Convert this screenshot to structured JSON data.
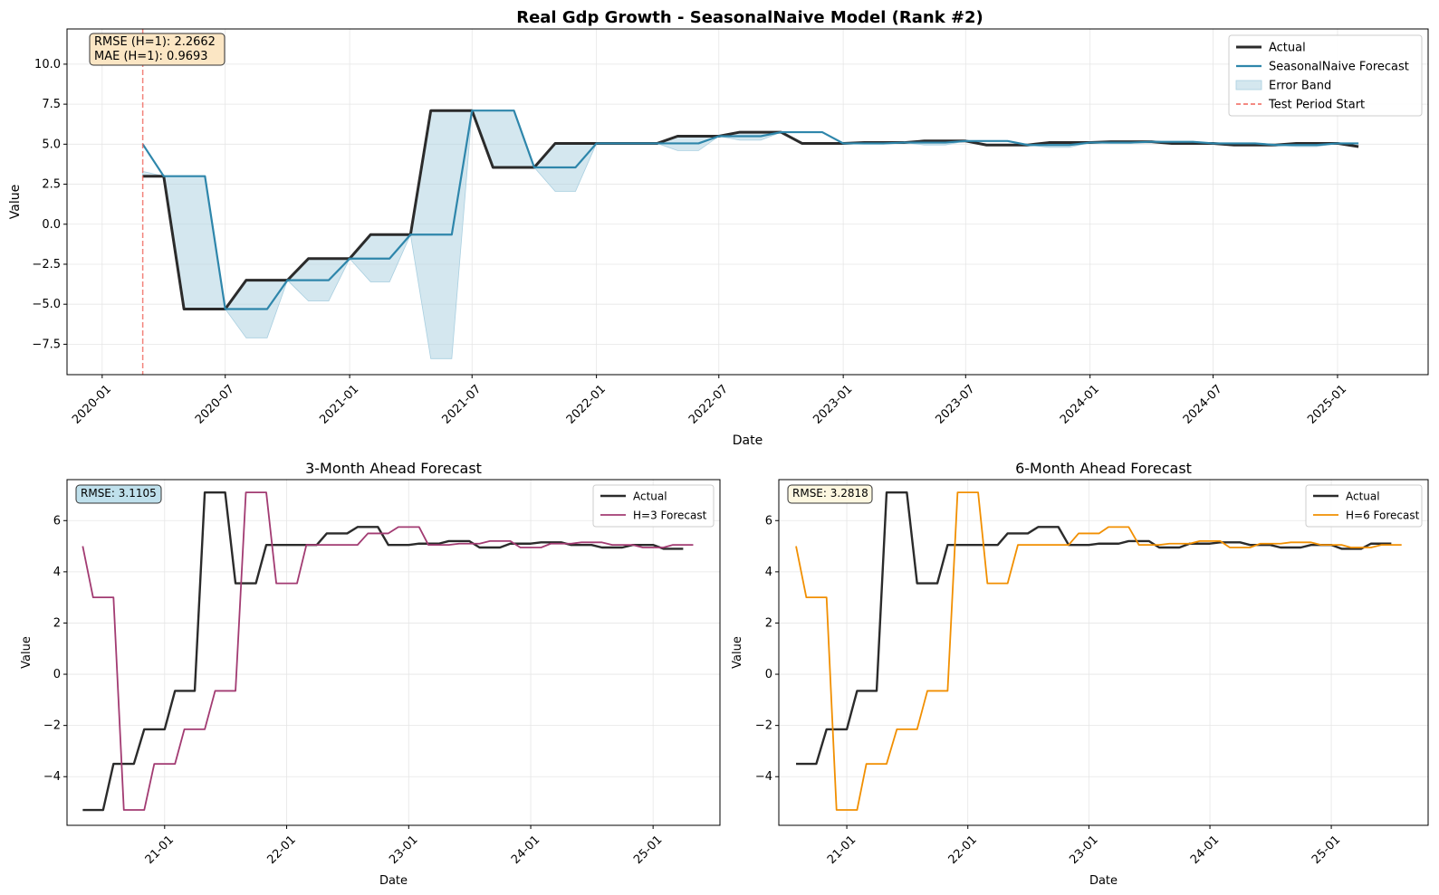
{
  "figure": {
    "title": "Real Gdp Growth - SeasonalNaive Model (Rank #2)"
  },
  "colors": {
    "actual": "#2b2b2b",
    "forecast": "#2e86ab",
    "band": "#a9cfe0",
    "test_start": "#f0645a",
    "h3": "#a23b72",
    "h6": "#f18f01",
    "metrics_box": "#fbe6c4",
    "h3_box": "#bfe0ec",
    "h6_box": "#fdf7e0"
  },
  "chart_data": [
    {
      "id": "main",
      "type": "line",
      "title": "Real Gdp Growth - SeasonalNaive Model (Rank #2)",
      "xlabel": "Date",
      "ylabel": "Value",
      "xlim": [
        "2019-11-10",
        "2025-05-15"
      ],
      "ylim": [
        -9.4,
        12.2
      ],
      "xticks": [
        "2020-01",
        "2020-07",
        "2021-01",
        "2021-07",
        "2022-01",
        "2022-07",
        "2023-01",
        "2023-07",
        "2024-01",
        "2024-07",
        "2025-01"
      ],
      "yticks": [
        -7.5,
        -5.0,
        -2.5,
        0.0,
        2.5,
        5.0,
        7.5,
        10.0
      ],
      "ytick_labels": [
        "−7.5",
        "−5.0",
        "−2.5",
        "0.0",
        "2.5",
        "5.0",
        "7.5",
        "10.0"
      ],
      "grid": true,
      "legend_position": "top-right",
      "annotation": {
        "line1": "RMSE (H=1): 2.2662",
        "line2": "MAE (H=1): 0.9693"
      },
      "test_period_start": "2020-03",
      "x": [
        "2020-03",
        "2020-04",
        "2020-05",
        "2020-06",
        "2020-07",
        "2020-08",
        "2020-09",
        "2020-10",
        "2020-11",
        "2020-12",
        "2021-01",
        "2021-02",
        "2021-03",
        "2021-04",
        "2021-05",
        "2021-06",
        "2021-07",
        "2021-08",
        "2021-09",
        "2021-10",
        "2021-11",
        "2021-12",
        "2022-01",
        "2022-02",
        "2022-03",
        "2022-04",
        "2022-05",
        "2022-06",
        "2022-07",
        "2022-08",
        "2022-09",
        "2022-10",
        "2022-11",
        "2022-12",
        "2023-01",
        "2023-02",
        "2023-03",
        "2023-04",
        "2023-05",
        "2023-06",
        "2023-07",
        "2023-08",
        "2023-09",
        "2023-10",
        "2023-11",
        "2023-12",
        "2024-01",
        "2024-02",
        "2024-03",
        "2024-04",
        "2024-05",
        "2024-06",
        "2024-07",
        "2024-08",
        "2024-09",
        "2024-10",
        "2024-11",
        "2024-12",
        "2025-01",
        "2025-02"
      ],
      "series": [
        {
          "name": "Actual",
          "values": [
            3.0,
            3.0,
            -5.3,
            -5.3,
            -5.3,
            -3.5,
            -3.5,
            -3.5,
            -2.15,
            -2.15,
            -2.15,
            -0.65,
            -0.65,
            -0.65,
            7.1,
            7.1,
            7.1,
            3.55,
            3.55,
            3.55,
            5.05,
            5.05,
            5.05,
            5.05,
            5.05,
            5.05,
            5.5,
            5.5,
            5.5,
            5.75,
            5.75,
            5.75,
            5.05,
            5.05,
            5.05,
            5.1,
            5.1,
            5.1,
            5.2,
            5.2,
            5.2,
            4.95,
            4.95,
            4.95,
            5.1,
            5.1,
            5.1,
            5.15,
            5.15,
            5.15,
            5.05,
            5.05,
            5.05,
            4.95,
            4.95,
            4.95,
            5.05,
            5.05,
            5.05,
            4.85
          ]
        },
        {
          "name": "SeasonalNaive Forecast",
          "values": [
            5.0,
            3.0,
            3.0,
            3.0,
            -5.3,
            -5.3,
            -5.3,
            -3.5,
            -3.5,
            -3.5,
            -2.15,
            -2.15,
            -2.15,
            -0.65,
            -0.65,
            -0.65,
            7.1,
            7.1,
            7.1,
            3.55,
            3.55,
            3.55,
            5.05,
            5.05,
            5.05,
            5.05,
            5.05,
            5.05,
            5.5,
            5.5,
            5.5,
            5.75,
            5.75,
            5.75,
            5.05,
            5.05,
            5.05,
            5.1,
            5.1,
            5.1,
            5.2,
            5.2,
            5.2,
            4.95,
            4.95,
            4.95,
            5.1,
            5.1,
            5.1,
            5.15,
            5.15,
            5.15,
            5.05,
            5.05,
            5.05,
            4.95,
            4.95,
            4.95,
            5.05,
            5.05
          ]
        },
        {
          "name": "Error Band",
          "type": "area",
          "lower": [
            3.3,
            3.0,
            3.0,
            3.0,
            -5.3,
            -7.1,
            -7.1,
            -3.5,
            -4.8,
            -4.8,
            -2.15,
            -3.6,
            -3.6,
            -0.65,
            -8.4,
            -8.4,
            7.1,
            7.1,
            7.1,
            3.55,
            2.05,
            2.05,
            5.05,
            5.05,
            5.05,
            5.05,
            4.6,
            4.6,
            5.5,
            5.25,
            5.25,
            5.75,
            5.05,
            5.05,
            5.05,
            5.0,
            5.0,
            5.1,
            4.95,
            4.95,
            5.2,
            4.95,
            4.95,
            4.95,
            4.8,
            4.8,
            5.1,
            5.05,
            5.05,
            5.15,
            5.05,
            5.05,
            5.05,
            4.95,
            4.95,
            4.95,
            4.85,
            4.85,
            5.05,
            4.85
          ]
        }
      ],
      "legend": [
        "Actual",
        "SeasonalNaive Forecast",
        "Error Band",
        "Test Period Start"
      ]
    },
    {
      "id": "h3",
      "type": "line",
      "title": "3-Month Ahead Forecast",
      "xlabel": "Date",
      "ylabel": "Value",
      "xlim": [
        "2020-03-15",
        "2025-07-20"
      ],
      "ylim": [
        -5.9,
        7.6
      ],
      "xticks": [
        "21-01",
        "22-01",
        "23-01",
        "24-01",
        "25-01"
      ],
      "yticks": [
        -4,
        -2,
        0,
        2,
        4,
        6
      ],
      "ytick_labels": [
        "−4",
        "−2",
        "0",
        "2",
        "4",
        "6"
      ],
      "grid": true,
      "legend_position": "top-right",
      "annotation": "RMSE: 3.1105",
      "legend": [
        "Actual",
        "H=3 Forecast"
      ],
      "x": [
        "2020-05",
        "2020-06",
        "2020-07",
        "2020-08",
        "2020-09",
        "2020-10",
        "2020-11",
        "2020-12",
        "2021-01",
        "2021-02",
        "2021-03",
        "2021-04",
        "2021-05",
        "2021-06",
        "2021-07",
        "2021-08",
        "2021-09",
        "2021-10",
        "2021-11",
        "2021-12",
        "2022-01",
        "2022-02",
        "2022-03",
        "2022-04",
        "2022-05",
        "2022-06",
        "2022-07",
        "2022-08",
        "2022-09",
        "2022-10",
        "2022-11",
        "2022-12",
        "2023-01",
        "2023-02",
        "2023-03",
        "2023-04",
        "2023-05",
        "2023-06",
        "2023-07",
        "2023-08",
        "2023-09",
        "2023-10",
        "2023-11",
        "2023-12",
        "2024-01",
        "2024-02",
        "2024-03",
        "2024-04",
        "2024-05",
        "2024-06",
        "2024-07",
        "2024-08",
        "2024-09",
        "2024-10",
        "2024-11",
        "2024-12",
        "2025-01",
        "2025-02",
        "2025-03",
        "2025-04",
        "2025-05"
      ],
      "series": [
        {
          "name": "Actual",
          "values": [
            -5.3,
            -5.3,
            -5.3,
            -3.5,
            -3.5,
            -3.5,
            -2.15,
            -2.15,
            -2.15,
            -0.65,
            -0.65,
            -0.65,
            7.1,
            7.1,
            7.1,
            3.55,
            3.55,
            3.55,
            5.05,
            5.05,
            5.05,
            5.05,
            5.05,
            5.05,
            5.5,
            5.5,
            5.5,
            5.75,
            5.75,
            5.75,
            5.05,
            5.05,
            5.05,
            5.1,
            5.1,
            5.1,
            5.2,
            5.2,
            5.2,
            4.95,
            4.95,
            4.95,
            5.1,
            5.1,
            5.1,
            5.15,
            5.15,
            5.15,
            5.05,
            5.05,
            5.05,
            4.95,
            4.95,
            4.95,
            5.05,
            5.05,
            5.05,
            4.9,
            4.9,
            4.9,
            null
          ]
        },
        {
          "name": "H=3 Forecast",
          "values": [
            5.0,
            3.0,
            3.0,
            3.0,
            -5.3,
            -5.3,
            -5.3,
            -3.5,
            -3.5,
            -3.5,
            -2.15,
            -2.15,
            -2.15,
            -0.65,
            -0.65,
            -0.65,
            7.1,
            7.1,
            7.1,
            3.55,
            3.55,
            3.55,
            5.05,
            5.05,
            5.05,
            5.05,
            5.05,
            5.05,
            5.5,
            5.5,
            5.5,
            5.75,
            5.75,
            5.75,
            5.05,
            5.05,
            5.05,
            5.1,
            5.1,
            5.1,
            5.2,
            5.2,
            5.2,
            4.95,
            4.95,
            4.95,
            5.1,
            5.1,
            5.1,
            5.15,
            5.15,
            5.15,
            5.05,
            5.05,
            5.05,
            4.95,
            4.95,
            4.95,
            5.05,
            5.05,
            5.05
          ]
        }
      ]
    },
    {
      "id": "h6",
      "type": "line",
      "title": "6-Month Ahead Forecast",
      "xlabel": "Date",
      "ylabel": "Value",
      "xlim": [
        "2020-06-10",
        "2025-10-20"
      ],
      "ylim": [
        -5.9,
        7.6
      ],
      "xticks": [
        "21-01",
        "22-01",
        "23-01",
        "24-01",
        "25-01"
      ],
      "yticks": [
        -4,
        -2,
        0,
        2,
        4,
        6
      ],
      "ytick_labels": [
        "−4",
        "−2",
        "0",
        "2",
        "4",
        "6"
      ],
      "grid": true,
      "legend_position": "top-right",
      "annotation": "RMSE: 3.2818",
      "legend": [
        "Actual",
        "H=6 Forecast"
      ],
      "x": [
        "2020-08",
        "2020-09",
        "2020-10",
        "2020-11",
        "2020-12",
        "2021-01",
        "2021-02",
        "2021-03",
        "2021-04",
        "2021-05",
        "2021-06",
        "2021-07",
        "2021-08",
        "2021-09",
        "2021-10",
        "2021-11",
        "2021-12",
        "2022-01",
        "2022-02",
        "2022-03",
        "2022-04",
        "2022-05",
        "2022-06",
        "2022-07",
        "2022-08",
        "2022-09",
        "2022-10",
        "2022-11",
        "2022-12",
        "2023-01",
        "2023-02",
        "2023-03",
        "2023-04",
        "2023-05",
        "2023-06",
        "2023-07",
        "2023-08",
        "2023-09",
        "2023-10",
        "2023-11",
        "2023-12",
        "2024-01",
        "2024-02",
        "2024-03",
        "2024-04",
        "2024-05",
        "2024-06",
        "2024-07",
        "2024-08",
        "2024-09",
        "2024-10",
        "2024-11",
        "2024-12",
        "2025-01",
        "2025-02",
        "2025-03",
        "2025-04",
        "2025-05",
        "2025-06",
        "2025-07",
        "2025-08"
      ],
      "series": [
        {
          "name": "Actual",
          "values": [
            -3.5,
            -3.5,
            -3.5,
            -2.15,
            -2.15,
            -2.15,
            -0.65,
            -0.65,
            -0.65,
            7.1,
            7.1,
            7.1,
            3.55,
            3.55,
            3.55,
            5.05,
            5.05,
            5.05,
            5.05,
            5.05,
            5.05,
            5.5,
            5.5,
            5.5,
            5.75,
            5.75,
            5.75,
            5.05,
            5.05,
            5.05,
            5.1,
            5.1,
            5.1,
            5.2,
            5.2,
            5.2,
            4.95,
            4.95,
            4.95,
            5.1,
            5.1,
            5.1,
            5.15,
            5.15,
            5.15,
            5.05,
            5.05,
            5.05,
            4.95,
            4.95,
            4.95,
            5.05,
            5.05,
            5.05,
            4.9,
            4.9,
            4.9,
            5.1,
            5.1,
            5.1,
            null
          ]
        },
        {
          "name": "H=6 Forecast",
          "values": [
            5.0,
            3.0,
            3.0,
            3.0,
            -5.3,
            -5.3,
            -5.3,
            -3.5,
            -3.5,
            -3.5,
            -2.15,
            -2.15,
            -2.15,
            -0.65,
            -0.65,
            -0.65,
            7.1,
            7.1,
            7.1,
            3.55,
            3.55,
            3.55,
            5.05,
            5.05,
            5.05,
            5.05,
            5.05,
            5.05,
            5.5,
            5.5,
            5.5,
            5.75,
            5.75,
            5.75,
            5.05,
            5.05,
            5.05,
            5.1,
            5.1,
            5.1,
            5.2,
            5.2,
            5.2,
            4.95,
            4.95,
            4.95,
            5.1,
            5.1,
            5.1,
            5.15,
            5.15,
            5.15,
            5.05,
            5.05,
            5.05,
            4.95,
            4.95,
            4.95,
            5.05,
            5.05,
            5.05
          ]
        }
      ]
    }
  ]
}
